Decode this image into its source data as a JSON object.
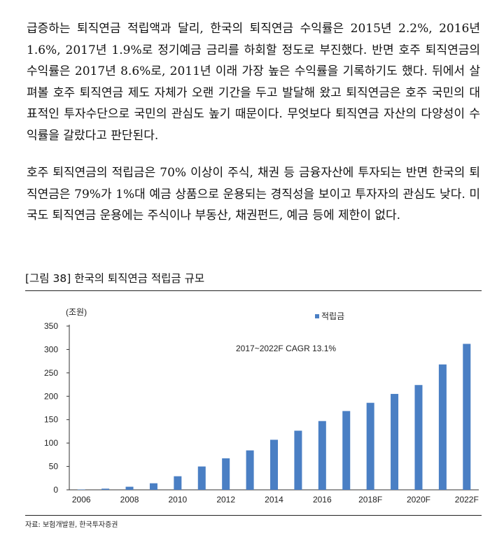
{
  "body": {
    "paragraph1": "급증하는 퇴직연금 적립액과 달리, 한국의 퇴직연금 수익률은 2015년 2.2%, 2016년 1.6%, 2017년 1.9%로 정기예금 금리를 하회할 정도로 부진했다. 반면 호주 퇴직연금의 수익률은 2017년 8.6%로, 2011년 이래 가장 높은 수익률을 기록하기도 했다. 뒤에서 살펴볼 호주 퇴직연금 제도 자체가 오랜 기간을 두고 발달해 왔고 퇴직연금은 호주 국민의 대표적인 투자수단으로 국민의 관심도 높기 때문이다. 무엇보다 퇴직연금 자산의 다양성이 수익률을 갈랐다고 판단된다.",
    "paragraph2": "호주 퇴직연금의 적립금은 70% 이상이 주식, 채권 등 금융자산에 투자되는 반면 한국의 퇴직연금은 79%가 1%대 예금 상품으로 운용되는 경직성을 보이고 투자자의 관심도 낮다. 미국도 퇴직연금 운용에는 주식이나 부동산, 채권펀드, 예금 등에 제한이 없다."
  },
  "figure": {
    "title": "[그림 38] 한국의 퇴직연금 적립금 규모",
    "source": "자료: 보험개발원, 한국투자증권"
  },
  "chart_data": {
    "type": "bar",
    "unit_label": "(조원)",
    "annotation": "2017~2022F CAGR 13.1%",
    "legend_position": "top-right",
    "bar_color": "#4a7fc4",
    "categories": [
      "2006",
      "2007",
      "2008",
      "2009",
      "2010",
      "2011",
      "2012",
      "2013",
      "2014",
      "2015",
      "2016",
      "2017",
      "2018F",
      "2019F",
      "2020F",
      "2021F",
      "2022F"
    ],
    "x_tick_labels": [
      "2006",
      "2008",
      "2010",
      "2012",
      "2014",
      "2016",
      "2018F",
      "2020F",
      "2022F"
    ],
    "series": [
      {
        "name": "적립금",
        "values": [
          0.8,
          2.5,
          6.6,
          14,
          29,
          49.9,
          67.3,
          84.3,
          107,
          126.4,
          147,
          168.4,
          186,
          205,
          224,
          268,
          312
        ]
      }
    ],
    "ylim": [
      0,
      350
    ],
    "yticks": [
      0,
      50,
      100,
      150,
      200,
      250,
      300,
      350
    ]
  }
}
